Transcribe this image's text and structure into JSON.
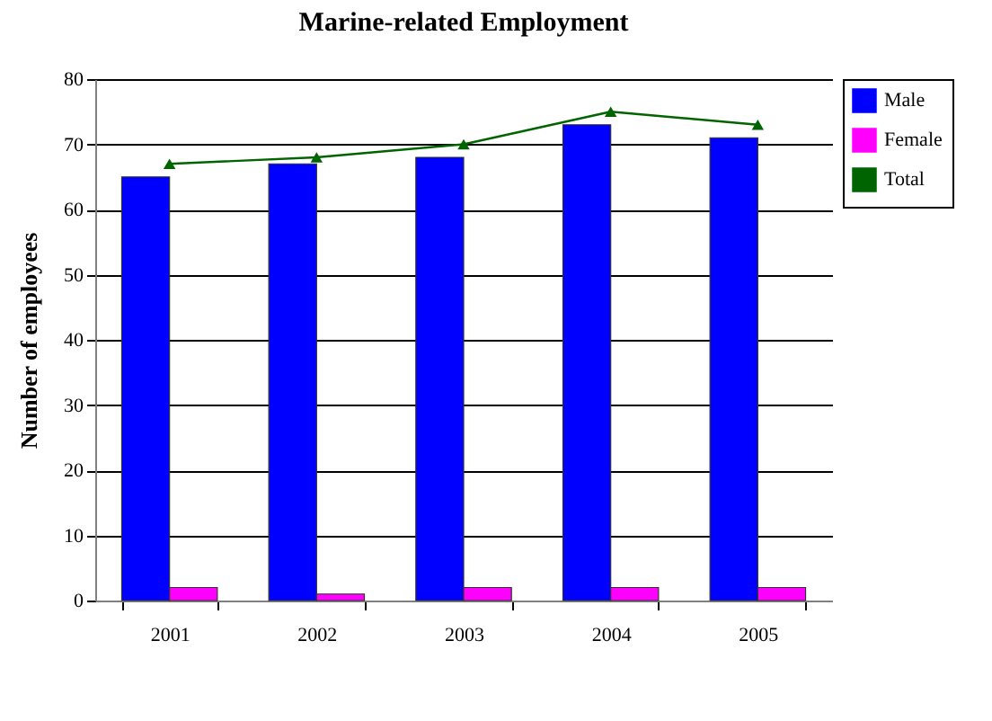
{
  "chart_data": {
    "type": "bar",
    "title": "Marine-related Employment",
    "ylabel": "Number of employees",
    "categories": [
      "2001",
      "2002",
      "2003",
      "2004",
      "2005"
    ],
    "series": [
      {
        "name": "Male",
        "color": "#0000ff",
        "values": [
          65,
          67,
          68,
          73,
          71
        ]
      },
      {
        "name": "Female",
        "color": "#ff00ff",
        "values": [
          2,
          1,
          2,
          2,
          2
        ]
      },
      {
        "name": "Total",
        "type": "line",
        "color": "#006400",
        "marker": "triangle",
        "values": [
          67,
          68,
          70,
          75,
          73
        ]
      }
    ],
    "ylim": [
      0,
      80
    ],
    "yticks": [
      0,
      10,
      20,
      30,
      40,
      50,
      60,
      70,
      80
    ],
    "grid": "y",
    "legend": "right"
  }
}
